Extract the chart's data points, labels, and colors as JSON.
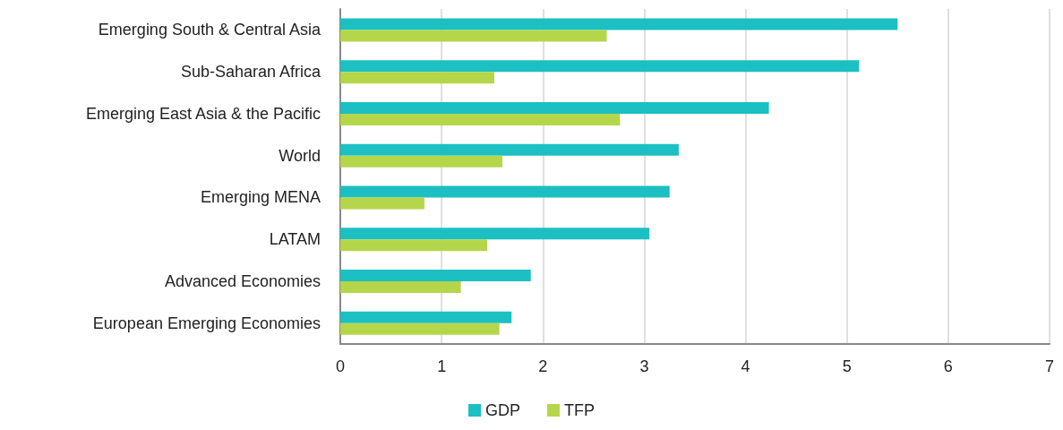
{
  "chart_data": {
    "type": "bar",
    "orientation": "horizontal",
    "categories": [
      "Emerging South & Central Asia",
      "Sub-Saharan Africa",
      "Emerging East Asia & the Pacific",
      "World",
      "Emerging MENA",
      "LATAM",
      "Advanced Economies",
      "European Emerging Economies"
    ],
    "series": [
      {
        "name": "GDP",
        "color": "#1cbfc2",
        "values": [
          5.5,
          5.12,
          4.23,
          3.34,
          3.25,
          3.05,
          1.88,
          1.69
        ]
      },
      {
        "name": "TFP",
        "color": "#b5d64b",
        "values": [
          2.63,
          1.52,
          2.76,
          1.6,
          0.83,
          1.45,
          1.19,
          1.57
        ]
      }
    ],
    "xlim": [
      0,
      7
    ],
    "xticks": [
      0,
      1,
      2,
      3,
      4,
      5,
      6,
      7
    ],
    "grid": "x",
    "legend": "bottom"
  }
}
